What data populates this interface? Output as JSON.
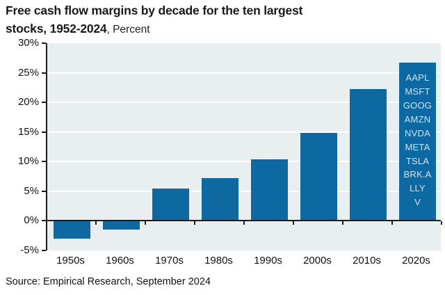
{
  "title": {
    "line1": "Free cash flow margins by decade for the ten largest",
    "line2_bold": "stocks, 1952-2024",
    "line2_normal": ", Percent"
  },
  "source": "Source: Empirical Research, September 2024",
  "chart_data": {
    "type": "bar",
    "title": "Free cash flow margins by decade for the ten largest stocks, 1952-2024",
    "ylabel": "Percent",
    "categories": [
      "1950s",
      "1960s",
      "1970s",
      "1980s",
      "1990s",
      "2000s",
      "2010s",
      "2020s"
    ],
    "values": [
      -3.0,
      -1.5,
      5.5,
      7.2,
      10.4,
      14.9,
      22.2,
      26.7
    ],
    "ylim": [
      -5,
      30
    ],
    "ytick_step": 5,
    "ytick_labels": [
      "30%",
      "25%",
      "20%",
      "15%",
      "10%",
      "5%",
      "0%",
      "-5%"
    ],
    "grid": "horizontal-white",
    "legend": "none",
    "bar_annotation": {
      "category": "2020s",
      "labels": [
        "AAPL",
        "MSFT",
        "GOOG",
        "AMZN",
        "NVDA",
        "META",
        "TSLA",
        "BRK.A",
        "LLY",
        "V"
      ]
    },
    "colors": {
      "bar": "#0e69a3",
      "plot_background": "#e9eef1",
      "gridline": "#ffffff",
      "axis": "#1a1a1a",
      "annotation_text": "#cde2f0"
    }
  }
}
